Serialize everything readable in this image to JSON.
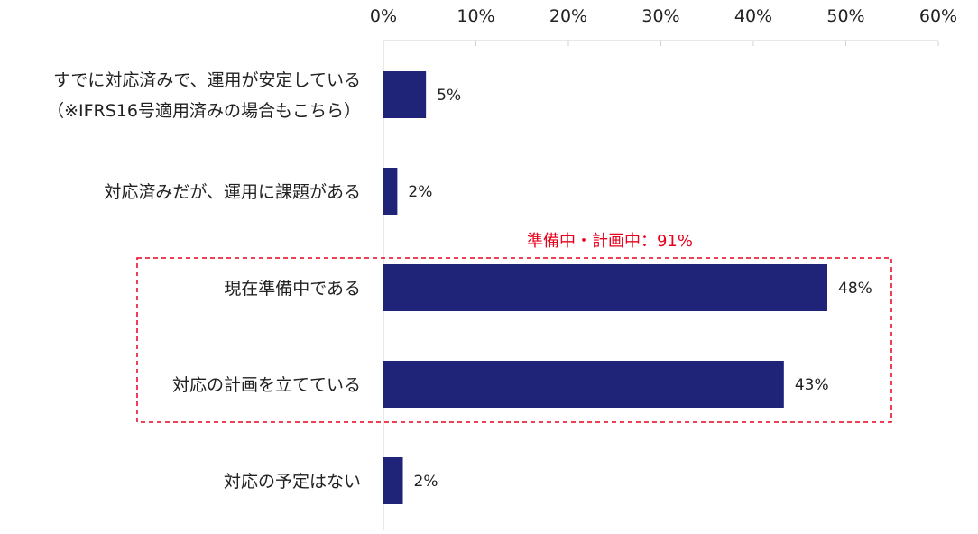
{
  "colors": {
    "bar": "#1f2478",
    "axis": "#d0d0d0",
    "annotation": "#e8001c"
  },
  "chart_data": {
    "type": "bar",
    "orientation": "horizontal",
    "x_ticks": [
      "0%",
      "10%",
      "20%",
      "30%",
      "40%",
      "50%",
      "60%"
    ],
    "xlim": [
      0,
      60
    ],
    "grid": false,
    "categories": [
      [
        "すでに対応済みで、運用が安定している",
        "（※IFRS16号適用済みの場合もこちら）"
      ],
      [
        "対応済みだが、運用に課題がある"
      ],
      [
        "現在準備中である"
      ],
      [
        "対応の計画を立てている"
      ],
      [
        "対応の予定はない"
      ]
    ],
    "values": [
      4.6,
      1.5,
      48,
      43.3,
      2.1
    ],
    "data_labels": [
      "5%",
      "2%",
      "48%",
      "43%",
      "2%"
    ],
    "annotation": {
      "text": "準備中・計画中：91%",
      "style": "red dashed box",
      "covers_categories": [
        2,
        3
      ]
    }
  }
}
